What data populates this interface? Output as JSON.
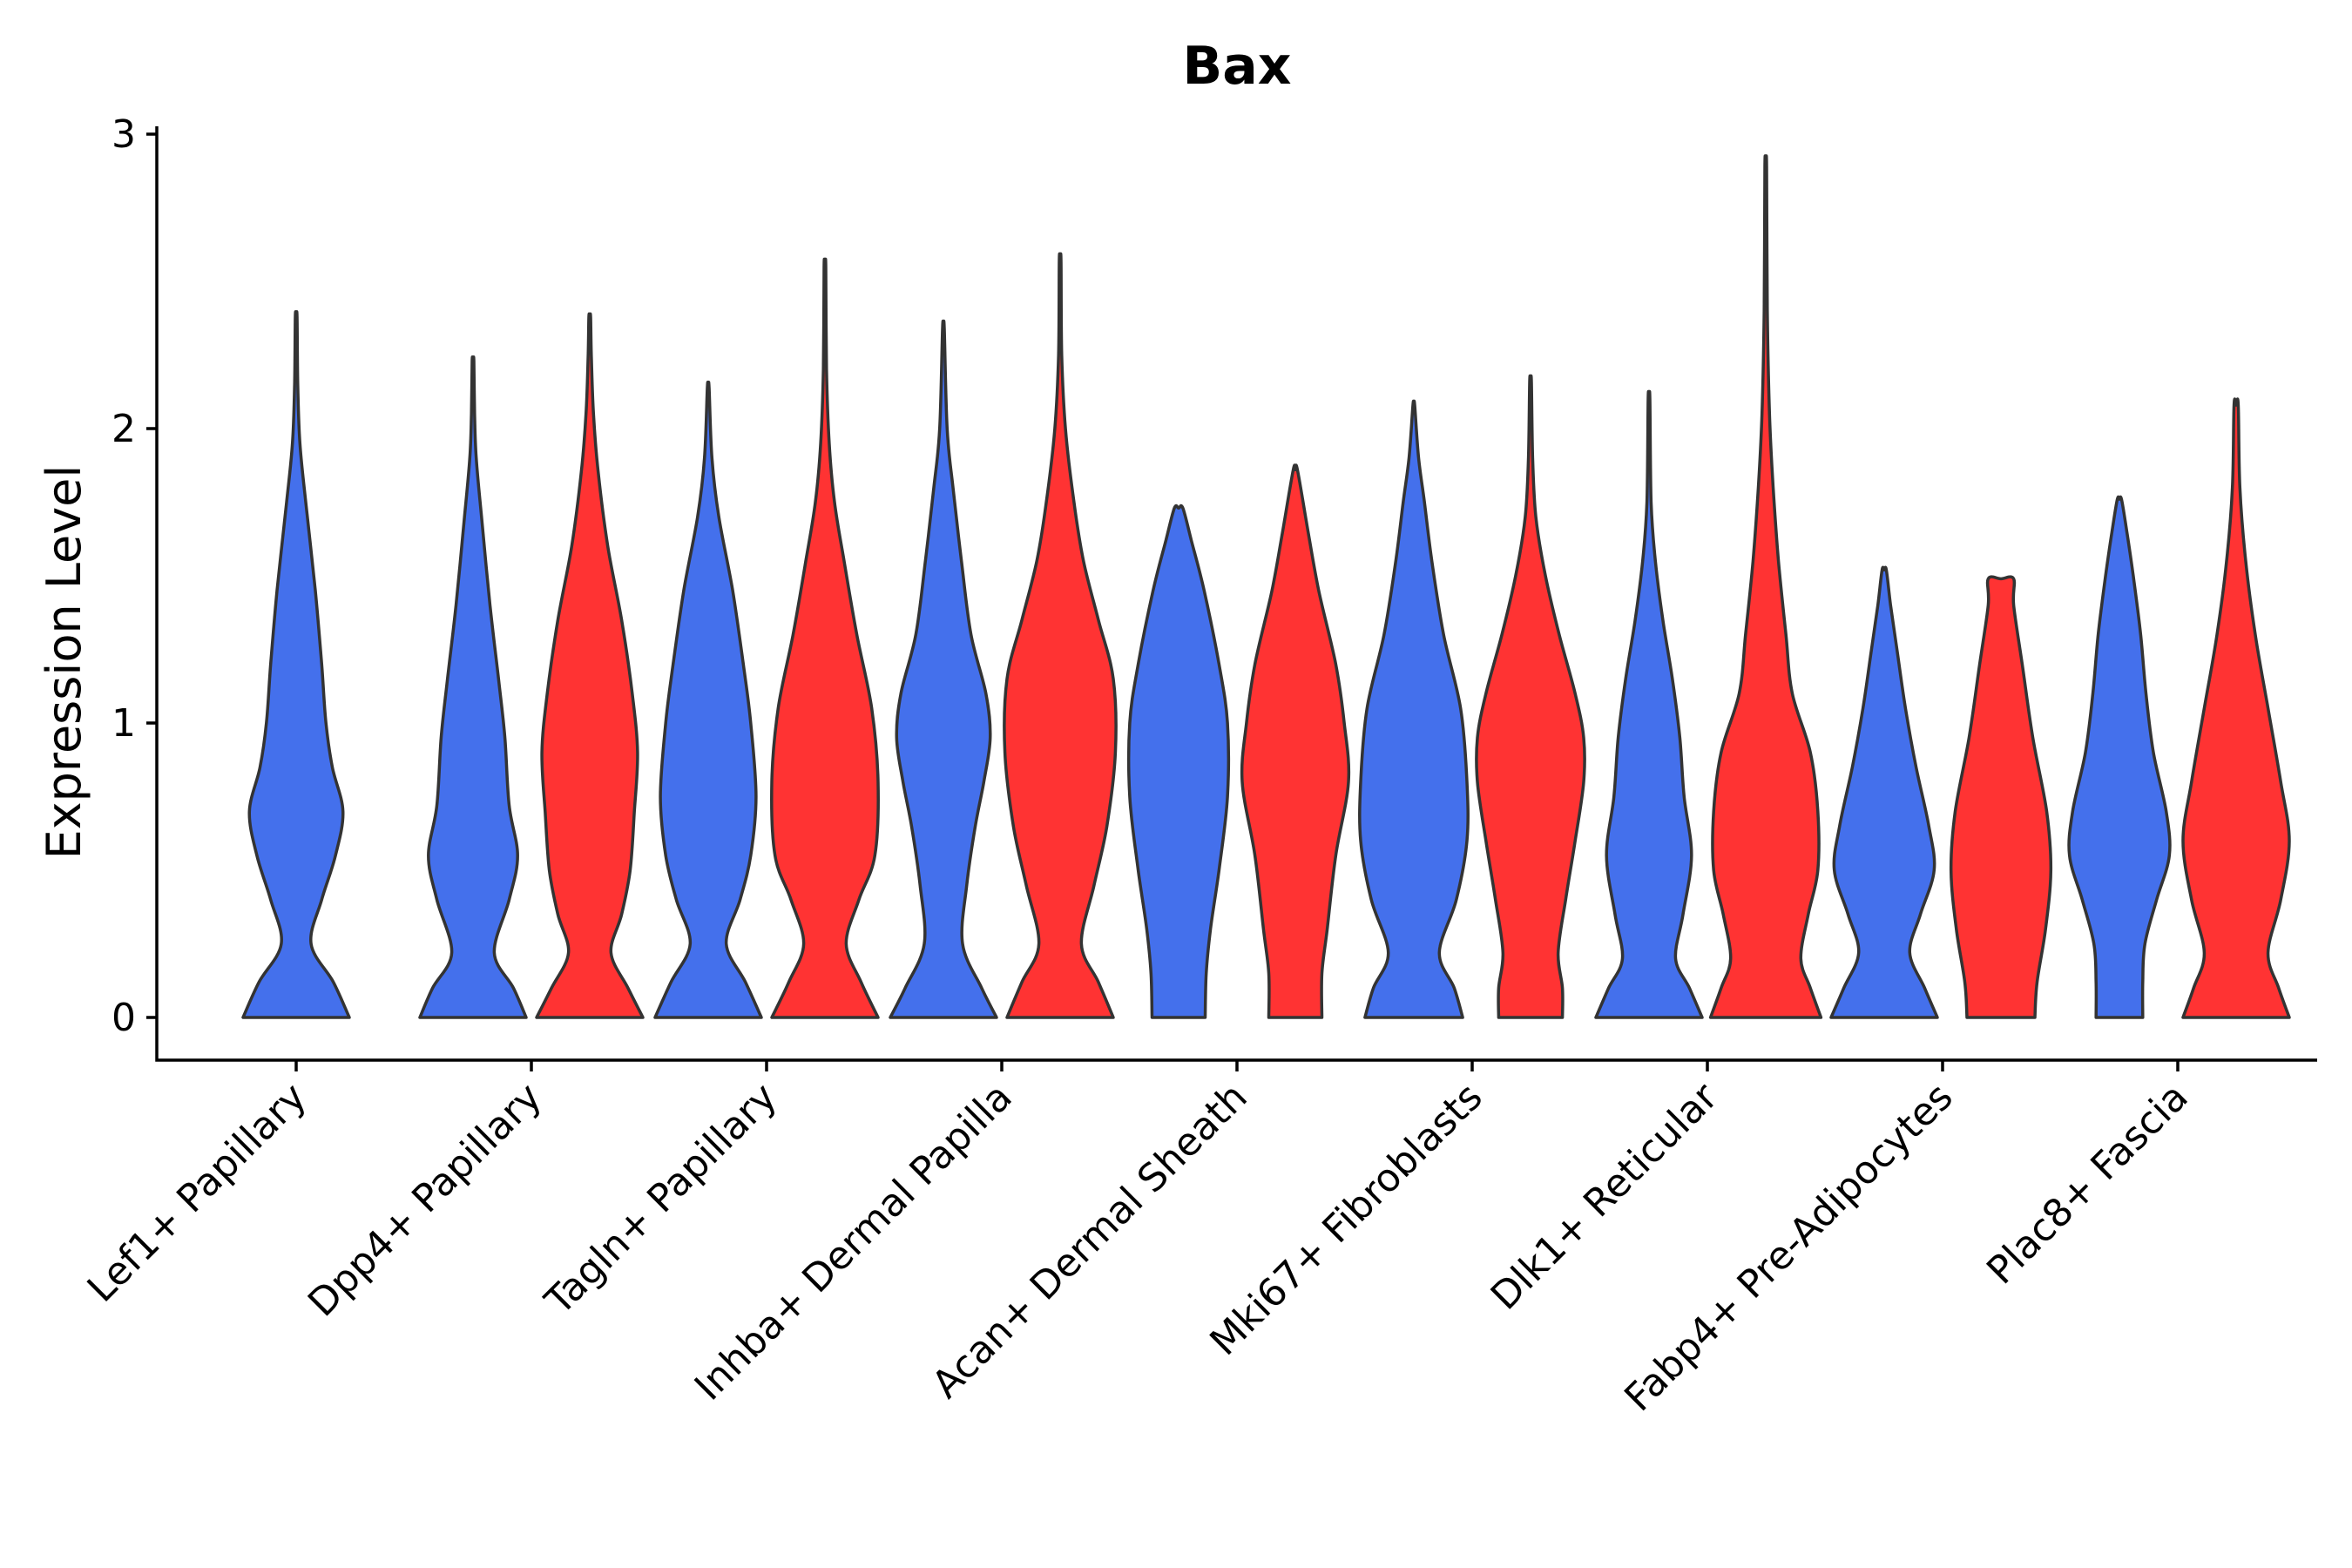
{
  "chart_data": {
    "type": "violin",
    "title": "Bax",
    "xlabel": "",
    "ylabel": "Expression Level",
    "ylim": [
      -0.14,
      3.0
    ],
    "yticks": [
      0,
      1,
      2,
      3
    ],
    "legend": "none",
    "grid": false,
    "colors": {
      "group_a": "#4470EC",
      "group_b": "#FF3333",
      "outline": "#333333"
    },
    "categories": [
      "Lef1+ Papillary",
      "Dpp4+ Papillary",
      "Tagln+ Papillary",
      "Inhba+ Dermal Papilla",
      "Acan+ Dermal Sheath",
      "Mki67+ Fibroblasts",
      "Dlk1+ Reticular",
      "Fabp4+ Pre-Adipocytes",
      "Plac8+ Fascia"
    ],
    "violins": [
      {
        "category": 0,
        "group": "a",
        "max": 2.38,
        "density": [
          [
            0,
            0.5
          ],
          [
            0.12,
            0.35
          ],
          [
            0.25,
            0.14
          ],
          [
            0.4,
            0.24
          ],
          [
            0.55,
            0.37
          ],
          [
            0.7,
            0.44
          ],
          [
            0.85,
            0.34
          ],
          [
            1.0,
            0.28
          ],
          [
            1.2,
            0.24
          ],
          [
            1.45,
            0.18
          ],
          [
            1.75,
            0.09
          ],
          [
            1.95,
            0.035
          ],
          [
            2.15,
            0.015
          ],
          [
            2.38,
            0.008
          ]
        ]
      },
      {
        "category": 1,
        "group": "a",
        "max": 2.23,
        "density": [
          [
            0,
            0.5
          ],
          [
            0.1,
            0.38
          ],
          [
            0.22,
            0.2
          ],
          [
            0.4,
            0.34
          ],
          [
            0.55,
            0.42
          ],
          [
            0.72,
            0.34
          ],
          [
            0.95,
            0.3
          ],
          [
            1.15,
            0.24
          ],
          [
            1.4,
            0.16
          ],
          [
            1.7,
            0.08
          ],
          [
            1.9,
            0.03
          ],
          [
            2.05,
            0.015
          ],
          [
            2.23,
            0.008
          ]
        ]
      },
      {
        "category": 1,
        "group": "b",
        "max": 2.38,
        "density": [
          [
            0,
            0.5
          ],
          [
            0.1,
            0.36
          ],
          [
            0.22,
            0.2
          ],
          [
            0.35,
            0.3
          ],
          [
            0.5,
            0.38
          ],
          [
            0.7,
            0.42
          ],
          [
            0.9,
            0.45
          ],
          [
            1.1,
            0.4
          ],
          [
            1.35,
            0.3
          ],
          [
            1.6,
            0.17
          ],
          [
            1.85,
            0.08
          ],
          [
            2.05,
            0.035
          ],
          [
            2.25,
            0.015
          ],
          [
            2.38,
            0.008
          ]
        ]
      },
      {
        "category": 2,
        "group": "a",
        "max": 2.14,
        "density": [
          [
            0,
            0.5
          ],
          [
            0.12,
            0.35
          ],
          [
            0.25,
            0.17
          ],
          [
            0.4,
            0.3
          ],
          [
            0.55,
            0.4
          ],
          [
            0.75,
            0.45
          ],
          [
            1.0,
            0.4
          ],
          [
            1.2,
            0.33
          ],
          [
            1.45,
            0.23
          ],
          [
            1.7,
            0.1
          ],
          [
            1.9,
            0.035
          ],
          [
            2.14,
            0.008
          ]
        ]
      },
      {
        "category": 2,
        "group": "b",
        "max": 2.55,
        "density": [
          [
            0,
            0.5
          ],
          [
            0.12,
            0.34
          ],
          [
            0.25,
            0.2
          ],
          [
            0.4,
            0.32
          ],
          [
            0.55,
            0.47
          ],
          [
            0.8,
            0.5
          ],
          [
            1.05,
            0.44
          ],
          [
            1.3,
            0.3
          ],
          [
            1.55,
            0.18
          ],
          [
            1.75,
            0.09
          ],
          [
            1.95,
            0.04
          ],
          [
            2.2,
            0.015
          ],
          [
            2.55,
            0.008
          ]
        ]
      },
      {
        "category": 3,
        "group": "a",
        "max": 2.34,
        "density": [
          [
            0,
            0.5
          ],
          [
            0.1,
            0.36
          ],
          [
            0.25,
            0.18
          ],
          [
            0.45,
            0.22
          ],
          [
            0.65,
            0.3
          ],
          [
            0.8,
            0.38
          ],
          [
            0.95,
            0.44
          ],
          [
            1.1,
            0.4
          ],
          [
            1.3,
            0.26
          ],
          [
            1.55,
            0.17
          ],
          [
            1.8,
            0.09
          ],
          [
            2.0,
            0.035
          ],
          [
            2.34,
            0.008
          ]
        ]
      },
      {
        "category": 3,
        "group": "b",
        "max": 2.57,
        "density": [
          [
            0,
            0.5
          ],
          [
            0.12,
            0.36
          ],
          [
            0.25,
            0.2
          ],
          [
            0.45,
            0.32
          ],
          [
            0.65,
            0.44
          ],
          [
            0.9,
            0.52
          ],
          [
            1.15,
            0.5
          ],
          [
            1.35,
            0.36
          ],
          [
            1.55,
            0.22
          ],
          [
            1.75,
            0.13
          ],
          [
            2.0,
            0.05
          ],
          [
            2.25,
            0.015
          ],
          [
            2.57,
            0.008
          ]
        ]
      },
      {
        "category": 4,
        "group": "a",
        "max": 1.73,
        "density": [
          [
            0,
            0.25
          ],
          [
            0.15,
            0.26
          ],
          [
            0.3,
            0.3
          ],
          [
            0.5,
            0.38
          ],
          [
            0.75,
            0.46
          ],
          [
            1.0,
            0.46
          ],
          [
            1.2,
            0.38
          ],
          [
            1.45,
            0.24
          ],
          [
            1.62,
            0.12
          ],
          [
            1.73,
            0.04
          ]
        ]
      },
      {
        "category": 4,
        "group": "b",
        "max": 1.86,
        "density": [
          [
            0,
            0.25
          ],
          [
            0.15,
            0.25
          ],
          [
            0.3,
            0.3
          ],
          [
            0.55,
            0.38
          ],
          [
            0.8,
            0.5
          ],
          [
            1.0,
            0.46
          ],
          [
            1.2,
            0.38
          ],
          [
            1.45,
            0.22
          ],
          [
            1.65,
            0.12
          ],
          [
            1.86,
            0.02
          ]
        ]
      },
      {
        "category": 5,
        "group": "a",
        "max": 2.08,
        "density": [
          [
            0,
            0.46
          ],
          [
            0.1,
            0.38
          ],
          [
            0.22,
            0.24
          ],
          [
            0.4,
            0.4
          ],
          [
            0.6,
            0.5
          ],
          [
            0.8,
            0.5
          ],
          [
            1.05,
            0.44
          ],
          [
            1.3,
            0.28
          ],
          [
            1.55,
            0.17
          ],
          [
            1.75,
            0.1
          ],
          [
            1.9,
            0.045
          ],
          [
            2.08,
            0.008
          ]
        ]
      },
      {
        "category": 5,
        "group": "b",
        "max": 2.16,
        "density": [
          [
            0,
            0.3
          ],
          [
            0.1,
            0.3
          ],
          [
            0.22,
            0.26
          ],
          [
            0.4,
            0.33
          ],
          [
            0.6,
            0.42
          ],
          [
            0.8,
            0.5
          ],
          [
            0.95,
            0.5
          ],
          [
            1.1,
            0.42
          ],
          [
            1.3,
            0.27
          ],
          [
            1.5,
            0.14
          ],
          [
            1.7,
            0.05
          ],
          [
            1.9,
            0.02
          ],
          [
            2.16,
            0.008
          ]
        ]
      },
      {
        "category": 6,
        "group": "a",
        "max": 2.1,
        "density": [
          [
            0,
            0.5
          ],
          [
            0.1,
            0.38
          ],
          [
            0.2,
            0.25
          ],
          [
            0.35,
            0.32
          ],
          [
            0.55,
            0.4
          ],
          [
            0.75,
            0.33
          ],
          [
            0.95,
            0.29
          ],
          [
            1.15,
            0.22
          ],
          [
            1.35,
            0.13
          ],
          [
            1.55,
            0.06
          ],
          [
            1.75,
            0.02
          ],
          [
            2.1,
            0.008
          ]
        ]
      },
      {
        "category": 6,
        "group": "b",
        "max": 2.89,
        "density": [
          [
            0,
            0.52
          ],
          [
            0.1,
            0.42
          ],
          [
            0.2,
            0.33
          ],
          [
            0.35,
            0.4
          ],
          [
            0.5,
            0.49
          ],
          [
            0.7,
            0.49
          ],
          [
            0.9,
            0.42
          ],
          [
            1.1,
            0.25
          ],
          [
            1.3,
            0.19
          ],
          [
            1.55,
            0.12
          ],
          [
            1.8,
            0.07
          ],
          [
            2.05,
            0.035
          ],
          [
            2.4,
            0.015
          ],
          [
            2.89,
            0.008
          ]
        ]
      },
      {
        "category": 7,
        "group": "a",
        "max": 1.52,
        "density": [
          [
            0,
            0.5
          ],
          [
            0.1,
            0.38
          ],
          [
            0.22,
            0.24
          ],
          [
            0.35,
            0.34
          ],
          [
            0.5,
            0.47
          ],
          [
            0.65,
            0.42
          ],
          [
            0.85,
            0.3
          ],
          [
            1.05,
            0.2
          ],
          [
            1.25,
            0.12
          ],
          [
            1.4,
            0.06
          ],
          [
            1.52,
            0.02
          ]
        ]
      },
      {
        "category": 7,
        "group": "b",
        "max": 1.49,
        "density": [
          [
            0,
            0.32
          ],
          [
            0.12,
            0.34
          ],
          [
            0.3,
            0.42
          ],
          [
            0.5,
            0.47
          ],
          [
            0.7,
            0.43
          ],
          [
            0.95,
            0.3
          ],
          [
            1.2,
            0.2
          ],
          [
            1.4,
            0.12
          ],
          [
            1.49,
            0.12
          ]
        ]
      },
      {
        "category": 8,
        "group": "a",
        "max": 1.76,
        "density": [
          [
            0,
            0.22
          ],
          [
            0.12,
            0.22
          ],
          [
            0.25,
            0.24
          ],
          [
            0.4,
            0.35
          ],
          [
            0.55,
            0.47
          ],
          [
            0.7,
            0.44
          ],
          [
            0.9,
            0.32
          ],
          [
            1.1,
            0.25
          ],
          [
            1.3,
            0.2
          ],
          [
            1.5,
            0.13
          ],
          [
            1.65,
            0.07
          ],
          [
            1.76,
            0.02
          ]
        ]
      },
      {
        "category": 8,
        "group": "b",
        "max": 2.08,
        "density": [
          [
            0,
            0.5
          ],
          [
            0.1,
            0.4
          ],
          [
            0.22,
            0.3
          ],
          [
            0.4,
            0.42
          ],
          [
            0.6,
            0.5
          ],
          [
            0.8,
            0.42
          ],
          [
            1.05,
            0.3
          ],
          [
            1.3,
            0.18
          ],
          [
            1.55,
            0.09
          ],
          [
            1.8,
            0.035
          ],
          [
            2.08,
            0.02
          ]
        ]
      }
    ]
  }
}
